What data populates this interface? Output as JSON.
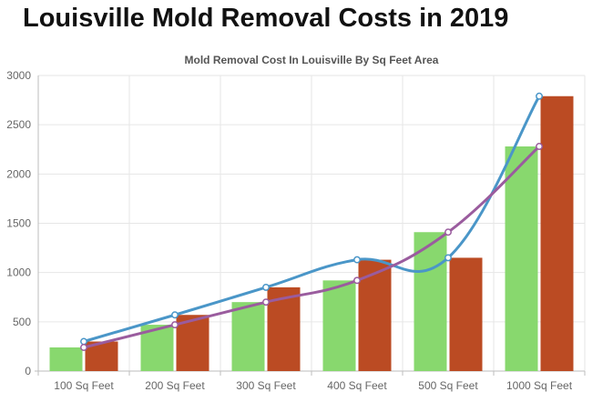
{
  "page": {
    "title": "Louisville Mold Removal Costs in 2019"
  },
  "chart_data": {
    "type": "bar",
    "title": "Mold Removal Cost In Louisville By Sq Feet Area",
    "xlabel": "",
    "ylabel": "",
    "categories": [
      "100 Sq Feet",
      "200 Sq Feet",
      "300 Sq Feet",
      "400 Sq Feet",
      "500 Sq Feet",
      "1000 Sq Feet"
    ],
    "ylim": [
      0,
      3000
    ],
    "yticks": [
      0,
      500,
      1000,
      1500,
      2000,
      2500,
      3000
    ],
    "grid": true,
    "series": [
      {
        "type": "bar",
        "color": "#88d86e",
        "values": [
          240,
          470,
          700,
          920,
          1410,
          2280
        ]
      },
      {
        "type": "bar",
        "color": "#bb4b23",
        "values": [
          300,
          570,
          850,
          1130,
          1150,
          2790
        ]
      },
      {
        "type": "line",
        "color": "#4a96c8",
        "values": [
          300,
          570,
          850,
          1130,
          1150,
          2790
        ]
      },
      {
        "type": "line",
        "color": "#9a5c9e",
        "values": [
          240,
          470,
          700,
          920,
          1410,
          2280
        ]
      }
    ]
  }
}
